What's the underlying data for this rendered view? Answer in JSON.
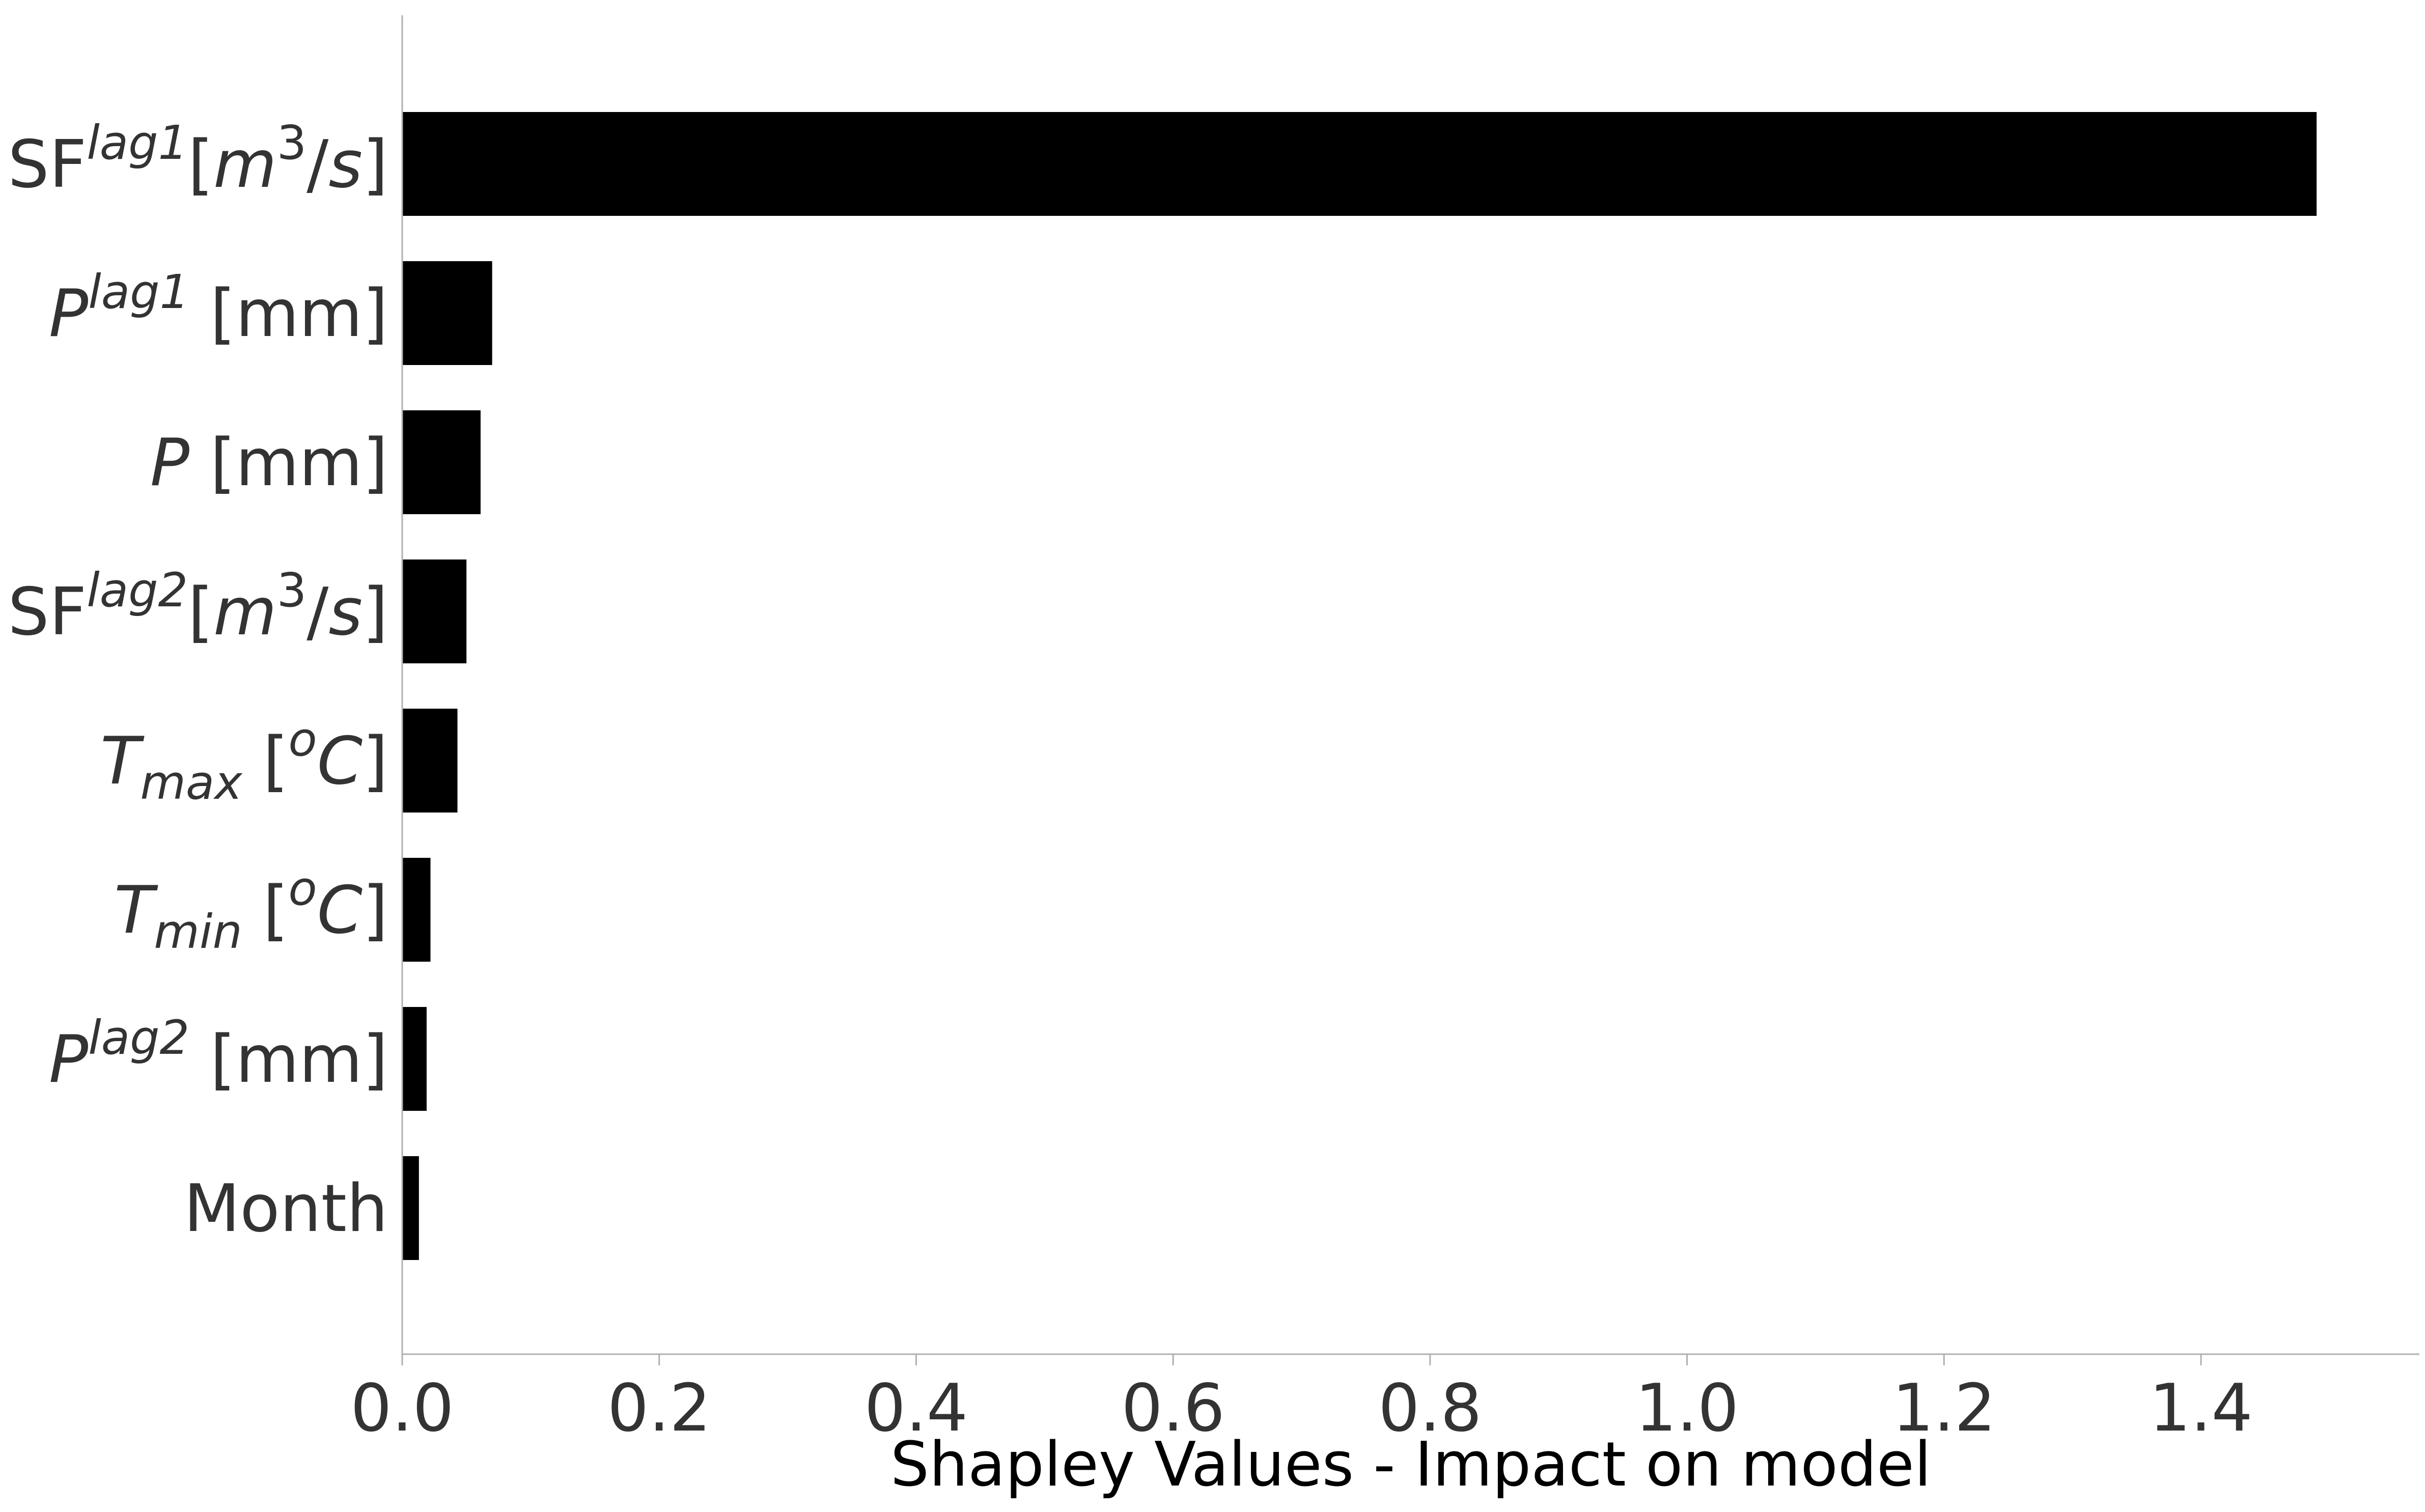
{
  "chart_data": {
    "type": "bar",
    "orientation": "horizontal",
    "title": "",
    "xlabel": "Shapley Values - Impact on model",
    "ylabel": "",
    "xlim": [
      0,
      1.57
    ],
    "xticks": [
      0.0,
      0.2,
      0.4,
      0.6,
      0.8,
      1.0,
      1.2,
      1.4
    ],
    "xtick_labels": [
      "0.0",
      "0.2",
      "0.4",
      "0.6",
      "0.8",
      "1.0",
      "1.2",
      "1.4"
    ],
    "grid": false,
    "bar_color": "#000000",
    "categories": [
      "SF^{lag1}[m^3/s]",
      "P^{lag1} [mm]",
      "P [mm]",
      "SF^{lag2}[m^3/s]",
      "T_{max} [^oC]",
      "T_{min} [^oC]",
      "P^{lag2} [mm]",
      "Month"
    ],
    "category_labels": [
      [
        {
          "t": "SF"
        },
        {
          "t": "lag1",
          "i": true,
          "sup": true
        },
        {
          "t": "["
        },
        {
          "t": "m",
          "i": true
        },
        {
          "t": "3",
          "sup": true
        },
        {
          "t": "/"
        },
        {
          "t": "s",
          "i": true
        },
        {
          "t": "]"
        }
      ],
      [
        {
          "t": "P",
          "i": true
        },
        {
          "t": "lag1",
          "i": true,
          "sup": true
        },
        {
          "t": " [mm]"
        }
      ],
      [
        {
          "t": "P",
          "i": true
        },
        {
          "t": " [mm]"
        }
      ],
      [
        {
          "t": "SF"
        },
        {
          "t": "lag2",
          "i": true,
          "sup": true
        },
        {
          "t": "["
        },
        {
          "t": "m",
          "i": true
        },
        {
          "t": "3",
          "sup": true
        },
        {
          "t": "/"
        },
        {
          "t": "s",
          "i": true
        },
        {
          "t": "]"
        }
      ],
      [
        {
          "t": "T",
          "i": true
        },
        {
          "t": "max",
          "i": true,
          "sub": true
        },
        {
          "t": " ["
        },
        {
          "t": "o",
          "i": true,
          "sup": true
        },
        {
          "t": "C",
          "i": true
        },
        {
          "t": "]"
        }
      ],
      [
        {
          "t": "T",
          "i": true
        },
        {
          "t": "min",
          "i": true,
          "sub": true
        },
        {
          "t": " ["
        },
        {
          "t": "o",
          "i": true,
          "sup": true
        },
        {
          "t": "C",
          "i": true
        },
        {
          "t": "]"
        }
      ],
      [
        {
          "t": "P",
          "i": true
        },
        {
          "t": "lag2",
          "i": true,
          "sup": true
        },
        {
          "t": " [mm]"
        }
      ],
      [
        {
          "t": "Month"
        }
      ]
    ],
    "values": [
      1.49,
      0.07,
      0.061,
      0.05,
      0.043,
      0.022,
      0.019,
      0.013
    ]
  }
}
